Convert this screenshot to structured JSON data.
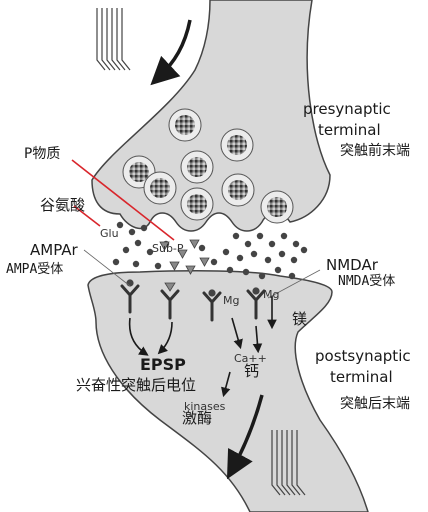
{
  "labels": {
    "presynaptic_en": "presynaptic",
    "terminal_top_en": "terminal",
    "presynaptic_zh": "突触前末端",
    "substance_p_zh": "P物质",
    "glutamate_zh": "谷氨酸",
    "glu": "Glu",
    "sub_p": "Sub-P",
    "ampar_en": "AMPAr",
    "ampar_zh": "AMPA受体",
    "nmdar_en": "NMDAr",
    "nmdar_zh": "NMDA受体",
    "mg_zh": "镁",
    "mg_1": "Mg",
    "mg_2": "Mg",
    "epsp_en": "EPSP",
    "epsp_zh": "兴奋性突触后电位",
    "ca": "Ca++",
    "ca_zh": "钙",
    "kinases_en": "kinases",
    "kinases_zh": "激酶",
    "postsynaptic_en": "postsynaptic",
    "terminal_bottom_en": "terminal",
    "postsynaptic_zh": "突触后末端"
  },
  "colors": {
    "membrane_fill": "#d8d8d8",
    "membrane_stroke": "#444444",
    "vesicle_fill": "#ececec",
    "dot": "#444444",
    "red_pointer": "#d9262c",
    "arrow": "#1a1a1a"
  },
  "icons": {
    "vesicle": "synaptic-vesicle-icon",
    "receptor": "y-receptor-icon",
    "ap_lines": "action-potential-spikes-icon"
  }
}
